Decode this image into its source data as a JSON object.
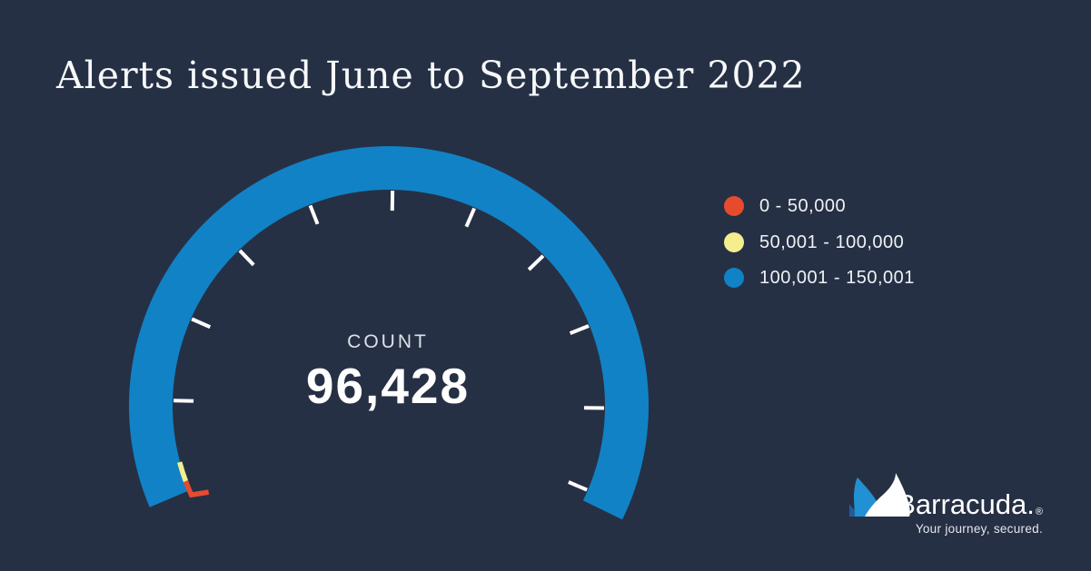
{
  "page": {
    "background": "#263044"
  },
  "header": {
    "title": "Alerts issued June to September 2022"
  },
  "chart_data": {
    "type": "gauge",
    "title": "Alerts issued June to September 2022",
    "metric_label": "COUNT",
    "value": 96428,
    "value_display": "96,428",
    "axis_min": 0,
    "axis_max": 150001,
    "bands": [
      {
        "label": "0 - 50,000",
        "range": [
          0,
          50000
        ],
        "color": "#E74B2E"
      },
      {
        "label": "50,001 - 100,000",
        "range": [
          50001,
          100000
        ],
        "color": "#F4EE8E"
      },
      {
        "label": "100,001 - 150,001",
        "range": [
          100001,
          150001
        ],
        "color": "#1182C5"
      }
    ],
    "legend_position": "right",
    "render": {
      "center": [
        428,
        447
      ],
      "arc": {
        "outer_radius": 286,
        "inner_radius": 238,
        "start_angle": 203,
        "end_angle": -26,
        "color": "#1182C5"
      },
      "ticks": {
        "count": 10,
        "start_angle": 178.6,
        "step": -22.4,
        "outer_radius": 237,
        "inner_radius": 215,
        "width": 4,
        "color": "#FFFFFF"
      },
      "band_marks": [
        {
          "color": "#F4EE8E",
          "radius": 238.5,
          "from": 200.4,
          "to": 195.1,
          "width": 5.5
        },
        {
          "color": "#E74B2E",
          "radius": 238.5,
          "from": 204.3,
          "to": 200.4,
          "width": 5.5,
          "extension": [
            19,
            -3
          ]
        }
      ]
    }
  },
  "logo": {
    "brand": "Barracuda.",
    "registered": "®",
    "tagline": "Your journey, secured.",
    "colors": {
      "fin_dark": "#1F5C9D",
      "fin_mid": "#2191D3",
      "fin_light": "#FFFFFF"
    }
  }
}
